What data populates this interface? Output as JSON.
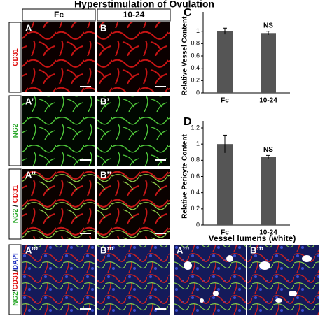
{
  "figure": {
    "title": "Hyperstimulation of Ovulation",
    "columns": [
      "Fc",
      "10-24"
    ],
    "row_labels": [
      {
        "parts": [
          "CD31"
        ],
        "colors": [
          "#e01010"
        ]
      },
      {
        "parts": [
          "NG2"
        ],
        "colors": [
          "#2aa82a"
        ]
      },
      {
        "parts": [
          "NG2",
          " / ",
          "CD31"
        ],
        "colors": [
          "#2aa82a",
          "#000000",
          "#e01010"
        ]
      },
      {
        "parts": [
          "NG2",
          "/",
          "CD31",
          "/",
          "DAPI"
        ],
        "colors": [
          "#2aa82a",
          "#000000",
          "#e01010",
          "#000000",
          "#2030c0"
        ]
      }
    ],
    "panel_letters": [
      [
        "A",
        "B"
      ],
      [
        "A’",
        "B’"
      ],
      [
        "A’’",
        "B’’"
      ],
      [
        "A’’’",
        "B’’’"
      ]
    ],
    "lumens_title": "Vessel lumens (white)",
    "lumens_letters": [
      "A’’’",
      "B’’’"
    ]
  },
  "chart_data": [
    {
      "type": "bar",
      "letter": "C",
      "y_label": "Relative Vessel Content",
      "categories": [
        "Fc",
        "10-24"
      ],
      "values": [
        1.0,
        0.97
      ],
      "errors": [
        0.05,
        0.03
      ],
      "color": "#555555",
      "annotation": "NS",
      "ylim": [
        0,
        1.2
      ],
      "yticks": [
        0,
        0.2,
        0.4,
        0.6,
        0.8,
        1
      ]
    },
    {
      "type": "bar",
      "letter": "D",
      "y_label": "Relative Pericyte Content",
      "categories": [
        "Fc",
        "10-24"
      ],
      "values": [
        1.0,
        0.84
      ],
      "errors": [
        0.11,
        0.02
      ],
      "color": "#555555",
      "annotation": "NS",
      "ylim": [
        0,
        1.2
      ],
      "yticks": [
        0,
        0.2,
        0.4,
        0.6,
        0.8,
        1,
        1.2
      ]
    }
  ]
}
